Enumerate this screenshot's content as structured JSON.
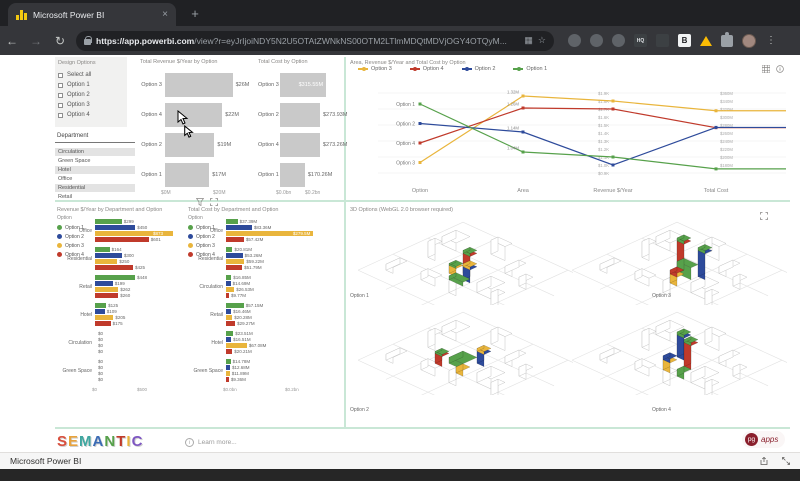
{
  "browser": {
    "tab_title": "Microsoft Power BI",
    "close_glyph": "×",
    "new_tab_glyph": "+",
    "back_glyph": "←",
    "forward_glyph": "→",
    "refresh_glyph": "↻",
    "url_domain": "https://app.powerbi.com",
    "url_path": "/view?r=eyJrIjoiNDY5N2U5OTAtZWNkNS00OTM2LTlmMDQtMDVjOGY4OTQyM...",
    "bookmark_glyph": "☆",
    "menu_glyph": "⋮",
    "ext_badge_hq": "HQ",
    "ext_badge_b": "B"
  },
  "option_colors": {
    "Option 1": "#57A14B",
    "Option 2": "#2E4B9B",
    "Option 3": "#E9B53C",
    "Option 4": "#C03A2B"
  },
  "slicers": {
    "design": {
      "title": "Design Options",
      "items": [
        "Select all",
        "Option 1",
        "Option 2",
        "Option 3",
        "Option 4"
      ]
    },
    "department": {
      "title": "Department",
      "items": [
        {
          "label": "Circulation",
          "selected": true
        },
        {
          "label": "Green Space",
          "selected": false
        },
        {
          "label": "Hotel",
          "selected": true
        },
        {
          "label": "Office",
          "selected": false
        },
        {
          "label": "Residential",
          "selected": true
        },
        {
          "label": "Retail",
          "selected": false
        }
      ]
    }
  },
  "three_d_panel": {
    "title": "3D Options (WebGL 2.0 browser required)",
    "labels": [
      "Option 1",
      "Option 3",
      "Option 2",
      "Option 4"
    ]
  },
  "footer": {
    "logo_letters": "SEMANTIC",
    "logo_colors": [
      "#D94F3D",
      "#E8A33D",
      "#3FA7A0",
      "#3B6BB5",
      "#57A14B",
      "#C03A2B",
      "#E9B53C",
      "#7E57C2"
    ],
    "learn_more": "Learn more...",
    "pg": "pg",
    "apps": "apps"
  },
  "viewer_bar": {
    "title": "Microsoft Power BI"
  },
  "chart_data": [
    {
      "id": "revenue-by-option",
      "type": "bar",
      "title": "Total Revenue $/Year by Option",
      "categories": [
        "Option 3",
        "Option 4",
        "Option 2",
        "Option 1"
      ],
      "values": [
        26,
        22,
        19,
        17
      ],
      "labels": [
        "$26M",
        "$22M",
        "$19M",
        "$17M"
      ],
      "xticks": [
        "$0M",
        "$20M"
      ],
      "xlim": [
        0,
        30
      ],
      "bar_color": "#C9C9C9"
    },
    {
      "id": "cost-by-option",
      "type": "bar",
      "title": "Total Cost by Option",
      "categories": [
        "Option 3",
        "Option 2",
        "Option 4",
        "Option 1"
      ],
      "values": [
        315.55,
        273.93,
        273.26,
        170.26
      ],
      "labels": [
        "$315.55M",
        "$273.93M",
        "$273.26M",
        "$170.26M"
      ],
      "xticks": [
        "$0.0bn",
        "$0.2bn"
      ],
      "xlim": [
        0,
        380
      ],
      "bar_color": "#C9C9C9"
    },
    {
      "id": "measures-by-option",
      "type": "line",
      "title": "Area, Revenue $/Year and Total Cost by Option",
      "legend": [
        "Option 3",
        "Option 4",
        "Option 2",
        "Option 1"
      ],
      "x_categories": [
        "Option",
        "Area",
        "Revenue $/Year",
        "Total Cost"
      ],
      "option_axis_order": [
        "Option 1",
        "Option 2",
        "Option 4",
        "Option 3"
      ],
      "series": [
        {
          "name": "Option 3",
          "area": 1.32,
          "area_label": "1.32M",
          "revenue": 1.8,
          "revenue_label": "$1.8K",
          "cost": 315.55,
          "cost_label": "$315.55M"
        },
        {
          "name": "Option 4",
          "area": 1.26,
          "area_label": "1.26M",
          "revenue": 1.7,
          "revenue_label": "$1.7K",
          "cost": 273.26,
          "cost_label": "$273.26M"
        },
        {
          "name": "Option 2",
          "area": 1.14,
          "area_label": "1.14M",
          "revenue": 1.0,
          "revenue_label": "$1.0K",
          "cost": 273.93,
          "cost_label": "$273.93M"
        },
        {
          "name": "Option 1",
          "area": 1.04,
          "area_label": "1.04M",
          "revenue": 1.1,
          "revenue_label": "$1.1K",
          "cost": 170.26,
          "cost_label": "$170.26M"
        }
      ],
      "revenue_ticks": [
        "$1.9K",
        "$1.8K",
        "$1.7K",
        "$1.6K",
        "$1.5K",
        "$1.4K",
        "$1.3K",
        "$1.2K",
        "$1.1K",
        "$1.0K",
        "$0.9K"
      ],
      "cost_ticks": [
        "$360M",
        "$340M",
        "$320M",
        "$300M",
        "$280M",
        "$260M",
        "$240M",
        "$220M",
        "$200M",
        "$180M"
      ]
    },
    {
      "id": "revenue-by-department",
      "type": "bar-grouped",
      "title": "Revenue $/Year by Department and Option",
      "legend_title": "Option",
      "legend": [
        "Option 1",
        "Option 2",
        "Option 3",
        "Option 4"
      ],
      "categories": [
        "Office",
        "Residential",
        "Retail",
        "Hotel",
        "Circulation",
        "Green Space"
      ],
      "series": [
        {
          "name": "Option 1",
          "values": [
            299,
            164,
            448,
            125,
            0,
            0
          ],
          "labels": [
            "$299",
            "$164",
            "$448",
            "$125",
            "$0",
            "$0"
          ]
        },
        {
          "name": "Option 2",
          "values": [
            450,
            300,
            199,
            109,
            0,
            0
          ],
          "labels": [
            "$450",
            "$300",
            "$199",
            "$109",
            "$0",
            "$0"
          ]
        },
        {
          "name": "Option 3",
          "values": [
            873,
            250,
            262,
            205,
            0,
            0
          ],
          "labels": [
            "$873",
            "$250",
            "$262",
            "$205",
            "$0",
            "$0"
          ]
        },
        {
          "name": "Option 4",
          "values": [
            601,
            425,
            260,
            175,
            0,
            0
          ],
          "labels": [
            "$601",
            "$425",
            "$260",
            "$175",
            "$0",
            "$0"
          ]
        }
      ],
      "xticks": [
        "$0",
        "$500"
      ],
      "xlim": [
        0,
        1000
      ]
    },
    {
      "id": "cost-by-department",
      "type": "bar-grouped",
      "title": "Total Cost by Department and Option",
      "legend_title": "Option",
      "legend": [
        "Option 1",
        "Option 2",
        "Option 3",
        "Option 4"
      ],
      "categories": [
        "Office",
        "Residential",
        "Circulation",
        "Retail",
        "Hotel",
        "Green Space"
      ],
      "series": [
        {
          "name": "Option 1",
          "values": [
            37.39,
            20.81,
            16.85,
            57.15,
            23.51,
            14.78
          ],
          "labels": [
            "$37.39M",
            "$20.81M",
            "$16.85M",
            "$57.15M",
            "$23.51M",
            "$14.78M"
          ]
        },
        {
          "name": "Option 2",
          "values": [
            83.36,
            53.26,
            14.69,
            16.46,
            16.51,
            12.68
          ],
          "labels": [
            "$83.36M",
            "$53.26M",
            "$14.69M",
            "$16.46M",
            "$16.51M",
            "$12.68M"
          ]
        },
        {
          "name": "Option 3",
          "values": [
            279.5,
            59.22,
            26.53,
            20.28,
            67.08,
            11.89
          ],
          "labels": [
            "$279.5M",
            "$59.22M",
            "$26.53M",
            "$20.28M",
            "$67.08M",
            "$11.89M"
          ]
        },
        {
          "name": "Option 4",
          "values": [
            57.42,
            51.79,
            9.77,
            29.27,
            20.21,
            9.36
          ],
          "labels": [
            "$57.42M",
            "$51.79M",
            "$9.77M",
            "$29.27M",
            "$20.21M",
            "$9.36M"
          ]
        }
      ],
      "xticks": [
        "$0.0bn",
        "$0.2bn"
      ],
      "xlim": [
        0,
        290
      ]
    }
  ]
}
